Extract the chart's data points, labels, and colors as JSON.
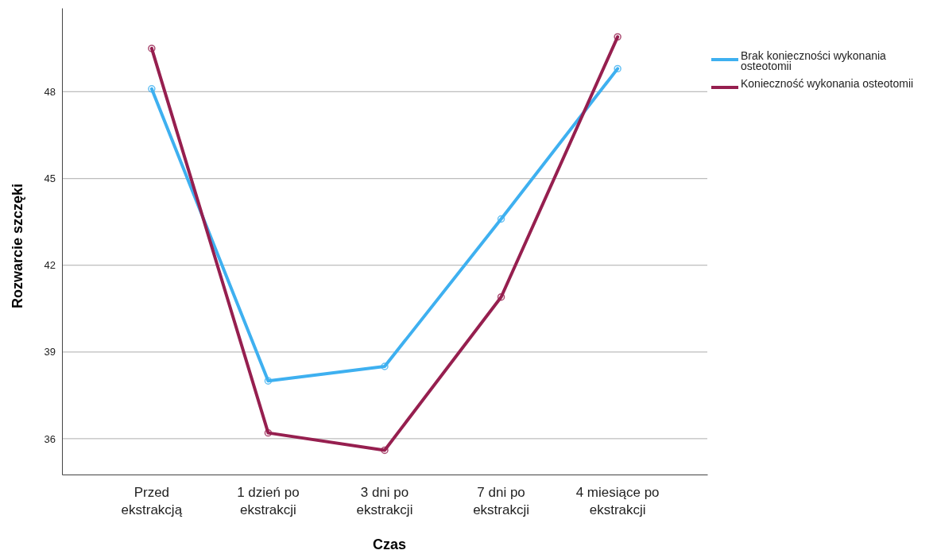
{
  "chart_data": {
    "type": "line",
    "xlabel": "Czas",
    "ylabel": "Rozwarcie szczęki",
    "categories": [
      "Przed ekstrakcją",
      "1 dzień po ekstrakcji",
      "3 dni po ekstrakcji",
      "7 dni po ekstrakcji",
      "4 miesiące po ekstrakcji"
    ],
    "series": [
      {
        "name": "Brak konieczności wykonania osteotomii",
        "color": "#3eb0f0",
        "values": [
          48.1,
          38.0,
          38.5,
          43.6,
          48.8
        ]
      },
      {
        "name": "Konieczność wykonania osteotomii",
        "color": "#961f4f",
        "values": [
          49.5,
          36.2,
          35.6,
          40.9,
          49.9
        ]
      }
    ],
    "ylim": [
      34.76,
      50.9
    ],
    "yticks": [
      36,
      39,
      42,
      45,
      48
    ],
    "grid": "y",
    "legend": "top right",
    "marker": "circle",
    "line_style": "solid"
  }
}
